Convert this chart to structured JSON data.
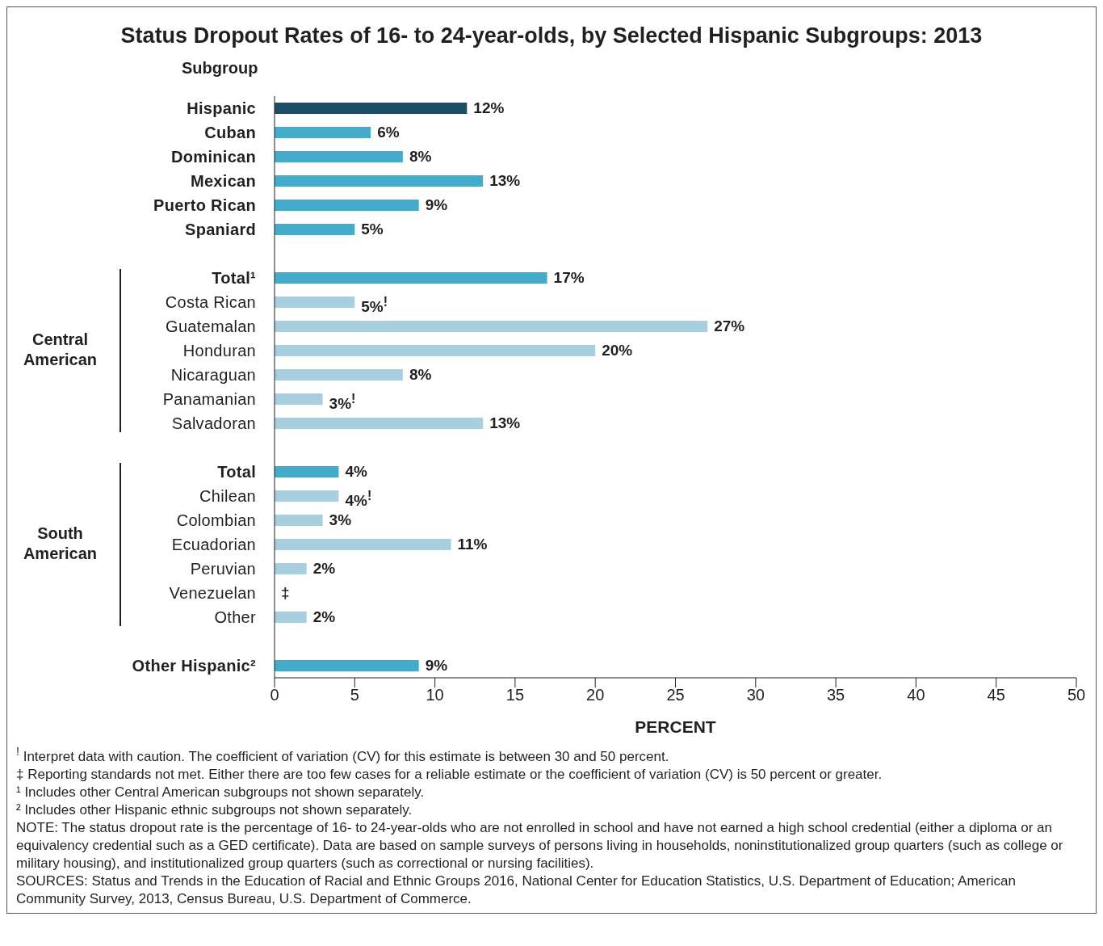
{
  "chart_data": {
    "type": "bar",
    "orientation": "horizontal",
    "title": "Status Dropout Rates of 16- to 24-year-olds, by Selected Hispanic Subgroups: 2013",
    "ylabel": "Subgroup",
    "xlabel": "PERCENT",
    "categories": [
      "Hispanic",
      "Cuban",
      "Dominican",
      "Mexican",
      "Puerto Rican",
      "Spaniard",
      null,
      "Total¹",
      "Costa Rican",
      "Guatemalan",
      "Honduran",
      "Nicaraguan",
      "Panamanian",
      "Salvadoran",
      null,
      "Total",
      "Chilean",
      "Colombian",
      "Ecuadorian",
      "Peruvian",
      "Venezuelan",
      "Other",
      null,
      "Other Hispanic²"
    ],
    "values": [
      12,
      6,
      8,
      13,
      9,
      5,
      null,
      17,
      5,
      27,
      20,
      8,
      3,
      13,
      null,
      4,
      4,
      3,
      11,
      2,
      null,
      2,
      null,
      9
    ],
    "value_labels": [
      "12%",
      "6%",
      "8%",
      "13%",
      "9%",
      "5%",
      null,
      "17%",
      "5%$^{!}$",
      "27%",
      "20%",
      "8%",
      "3%$^{!}$",
      "13%",
      null,
      "4%",
      "4%$^{!}$",
      "3%",
      "11%",
      "2%",
      "‡",
      "2%",
      null,
      "9%"
    ],
    "colors": [
      "#1d4e63",
      "#44abca",
      "#44abca",
      "#44abca",
      "#44abca",
      "#44abca",
      null,
      "#44abca",
      "#a8cfe0",
      "#a8cfe0",
      "#a8cfe0",
      "#a8cfe0",
      "#a8cfe0",
      "#a8cfe0",
      null,
      "#44abca",
      "#a8cfe0",
      "#a8cfe0",
      "#a8cfe0",
      "#a8cfe0",
      "#a8cfe0",
      "#a8cfe0",
      null,
      "#44abca"
    ],
    "xlim": [
      0,
      50
    ],
    "xticks": [
      0,
      5,
      10,
      15,
      20,
      25,
      30,
      35,
      40,
      45,
      50
    ],
    "annotations": [
      "Central American",
      "South American",
      "$^{!}$ Interpret data with caution. The coefficient of variation (CV) for this estimate is between 30 and 50 percent.",
      "‡ Reporting standards not met. Either there are too few cases for a reliable estimate or the coefficient of variation (CV) is 50 percent or greater.",
      "¹ Includes other Central American subgroups not shown separately.",
      "² Includes other Hispanic ethnic subgroups not shown separately.",
      "NOTE: The status dropout rate is the percentage of 16- to 24-year-olds who are not enrolled in school and have not earned a high school credential (either a diploma or an equivalency credential such as a GED certificate). Data are based on sample surveys of persons living in households, noninstitutionalized group quarters (such as college or military housing), and institutionalized group quarters (such as correctional or nursing facilities).",
      "SOURCES: Status and Trends in the Education of Racial and Ethnic Groups 2016, National Center for Education Statistics, U.S. Department of Education; American Community Survey, 2013, Census Bureau, U.S. Department of Commerce."
    ]
  }
}
